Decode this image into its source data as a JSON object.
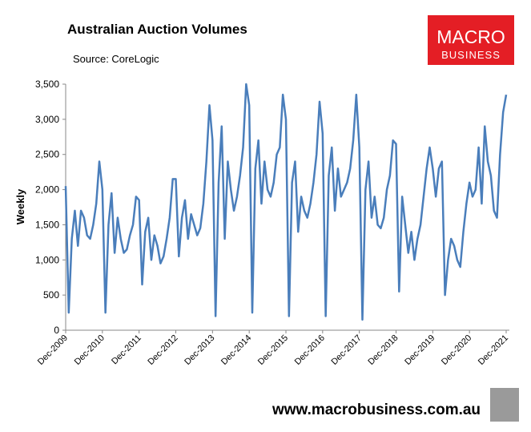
{
  "chart_data": {
    "type": "line",
    "title": "Australian Auction Volumes",
    "subtitle": "Source: CoreLogic",
    "ylabel": "Weekly",
    "color": "#4a7ebb",
    "categories": [
      "Dec-2009",
      null,
      null,
      null,
      null,
      null,
      null,
      null,
      null,
      null,
      null,
      null,
      "Dec-2010",
      null,
      null,
      null,
      null,
      null,
      null,
      null,
      null,
      null,
      null,
      null,
      "Dec-2011",
      null,
      null,
      null,
      null,
      null,
      null,
      null,
      null,
      null,
      null,
      null,
      "Dec-2012",
      null,
      null,
      null,
      null,
      null,
      null,
      null,
      null,
      null,
      null,
      null,
      "Dec-2013",
      null,
      null,
      null,
      null,
      null,
      null,
      null,
      null,
      null,
      null,
      null,
      "Dec-2014",
      null,
      null,
      null,
      null,
      null,
      null,
      null,
      null,
      null,
      null,
      null,
      "Dec-2015",
      null,
      null,
      null,
      null,
      null,
      null,
      null,
      null,
      null,
      null,
      null,
      "Dec-2016",
      null,
      null,
      null,
      null,
      null,
      null,
      null,
      null,
      null,
      null,
      null,
      "Dec-2017",
      null,
      null,
      null,
      null,
      null,
      null,
      null,
      null,
      null,
      null,
      null,
      "Dec-2018",
      null,
      null,
      null,
      null,
      null,
      null,
      null,
      null,
      null,
      null,
      null,
      "Dec-2019",
      null,
      null,
      null,
      null,
      null,
      null,
      null,
      null,
      null,
      null,
      null,
      "Dec-2020",
      null,
      null,
      null,
      null,
      null,
      null,
      null,
      null,
      null,
      null,
      null,
      "Dec-2021"
    ],
    "values": [
      2050,
      250,
      1300,
      1700,
      1200,
      1700,
      1600,
      1350,
      1300,
      1500,
      1800,
      2400,
      2000,
      250,
      1500,
      1950,
      1100,
      1600,
      1300,
      1100,
      1150,
      1350,
      1500,
      1900,
      1850,
      650,
      1400,
      1600,
      1000,
      1350,
      1200,
      950,
      1050,
      1300,
      1600,
      2150,
      2150,
      1050,
      1600,
      1850,
      1300,
      1650,
      1500,
      1350,
      1450,
      1800,
      2400,
      3200,
      2700,
      200,
      2100,
      2900,
      1300,
      2400,
      2000,
      1700,
      1900,
      2200,
      2600,
      3500,
      3200,
      250,
      2300,
      2700,
      1800,
      2400,
      2000,
      1900,
      2100,
      2500,
      2600,
      3350,
      3000,
      200,
      2100,
      2400,
      1400,
      1900,
      1700,
      1600,
      1800,
      2100,
      2500,
      3250,
      2800,
      200,
      2200,
      2600,
      1700,
      2300,
      1900,
      2000,
      2100,
      2300,
      2700,
      3350,
      2600,
      150,
      2000,
      2400,
      1600,
      1900,
      1500,
      1450,
      1600,
      2000,
      2200,
      2700,
      2650,
      550,
      1900,
      1500,
      1100,
      1400,
      1000,
      1300,
      1500,
      1900,
      2300,
      2600,
      2300,
      1900,
      2300,
      2400,
      500,
      1000,
      1300,
      1200,
      1000,
      900,
      1400,
      1800,
      2100,
      1900,
      2000,
      2600,
      1800,
      2900,
      2400,
      2200,
      1700,
      1600,
      2500,
      3100,
      3350
    ],
    "ylim": [
      0,
      3500
    ],
    "yticks": [
      0,
      500,
      {
        "value": 1000,
        "label": "1,000"
      },
      {
        "value": 1500,
        "label": "1,500"
      },
      {
        "value": 2000,
        "label": "2,000"
      },
      {
        "value": 2500,
        "label": "2,500"
      },
      {
        "value": 3000,
        "label": "3,000"
      },
      {
        "value": 3500,
        "label": "3,500"
      }
    ],
    "grid": false
  },
  "logo": {
    "line1": "MACRO",
    "line2": "BUSINESS"
  },
  "footer": "www.macrobusiness.com.au"
}
